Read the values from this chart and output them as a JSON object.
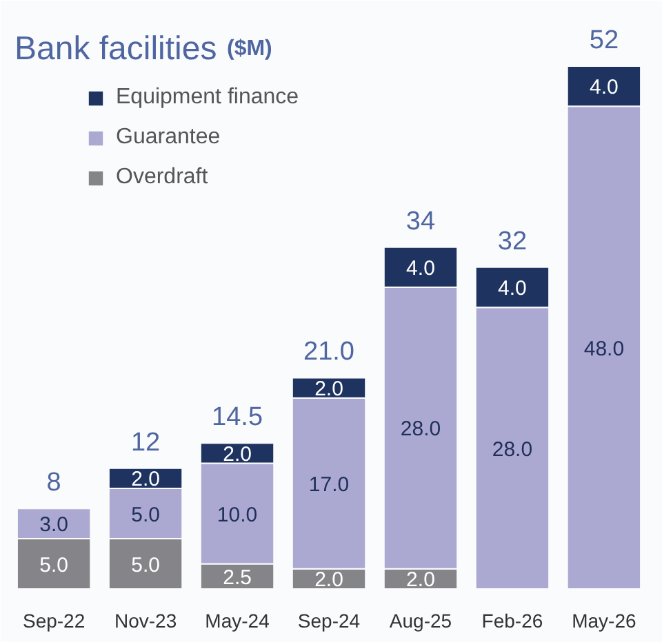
{
  "chart_data": {
    "type": "bar",
    "title": "Bank facilities",
    "subtitle": "($M)",
    "categories": [
      "Sep-22",
      "Nov-23",
      "May-24",
      "Sep-24",
      "Aug-25",
      "Feb-26",
      "May-26"
    ],
    "stacked": true,
    "series": [
      {
        "name": "Overdraft",
        "color": "#858589",
        "values": [
          5,
          5,
          2.5,
          2,
          2,
          null,
          null
        ],
        "value_labels": [
          "5.0",
          "5.0",
          "2.5",
          "2.0",
          "2.0",
          null,
          null
        ]
      },
      {
        "name": "Guarantee",
        "color": "#aba9d2",
        "values": [
          3,
          5,
          10,
          17,
          28,
          28,
          48
        ],
        "value_labels": [
          "3.0",
          "5.0",
          "10.0",
          "17.0",
          "28.0",
          "28.0",
          "48.0"
        ]
      },
      {
        "name": "Equipment finance",
        "color": "#1f3360",
        "values": [
          null,
          2,
          2,
          2,
          4,
          4,
          4
        ],
        "value_labels": [
          null,
          "2.0",
          "2.0",
          "2.0",
          "4.0",
          "4.0",
          "4.0"
        ]
      }
    ],
    "totals": [
      "8",
      "12",
      "14.5",
      "21.0",
      "34",
      "32",
      "52"
    ],
    "legend": "top left",
    "tick_labels": "x"
  }
}
